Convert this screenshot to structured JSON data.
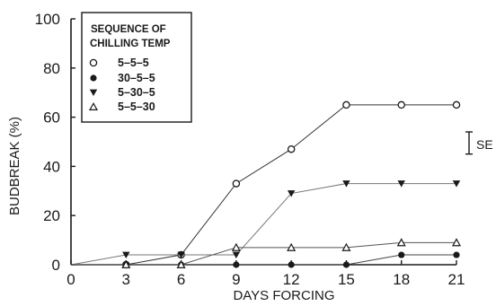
{
  "chart_data": {
    "type": "line",
    "xlabel": "DAYS FORCING",
    "ylabel": "BUDBREAK (%)",
    "xlim": [
      0,
      21
    ],
    "ylim": [
      0,
      100
    ],
    "x_ticks": [
      "0",
      "3",
      "6",
      "9",
      "12",
      "15",
      "18",
      "21"
    ],
    "y_ticks": [
      "0",
      "20",
      "40",
      "60",
      "80",
      "100"
    ],
    "grid": false,
    "legend": {
      "title_line1": "SEQUENCE OF",
      "title_line2": "CHILLING TEMP",
      "placement": "top-left"
    },
    "series": [
      {
        "name": "5-5-5",
        "marker": "open-circle",
        "x": [
          0,
          3,
          6,
          9,
          12,
          15,
          18,
          21
        ],
        "y": [
          0,
          0,
          4,
          33,
          47,
          65,
          65,
          65
        ]
      },
      {
        "name": "30-5-5",
        "marker": "filled-circle",
        "x": [
          0,
          3,
          6,
          9,
          12,
          15,
          18,
          21
        ],
        "y": [
          0,
          0,
          0,
          0,
          0,
          0,
          4,
          4
        ]
      },
      {
        "name": "5-30-5",
        "marker": "filled-triangle-down",
        "x": [
          0,
          3,
          6,
          9,
          12,
          15,
          18,
          21
        ],
        "y": [
          0,
          4,
          4,
          4,
          29,
          33,
          33,
          33
        ]
      },
      {
        "name": "5-5-30",
        "marker": "open-triangle-up",
        "x": [
          0,
          3,
          6,
          9,
          12,
          15,
          18,
          21
        ],
        "y": [
          0,
          0,
          0,
          7,
          7,
          7,
          9,
          9
        ]
      }
    ],
    "error_bar": {
      "label": "SE",
      "value": 9
    }
  }
}
